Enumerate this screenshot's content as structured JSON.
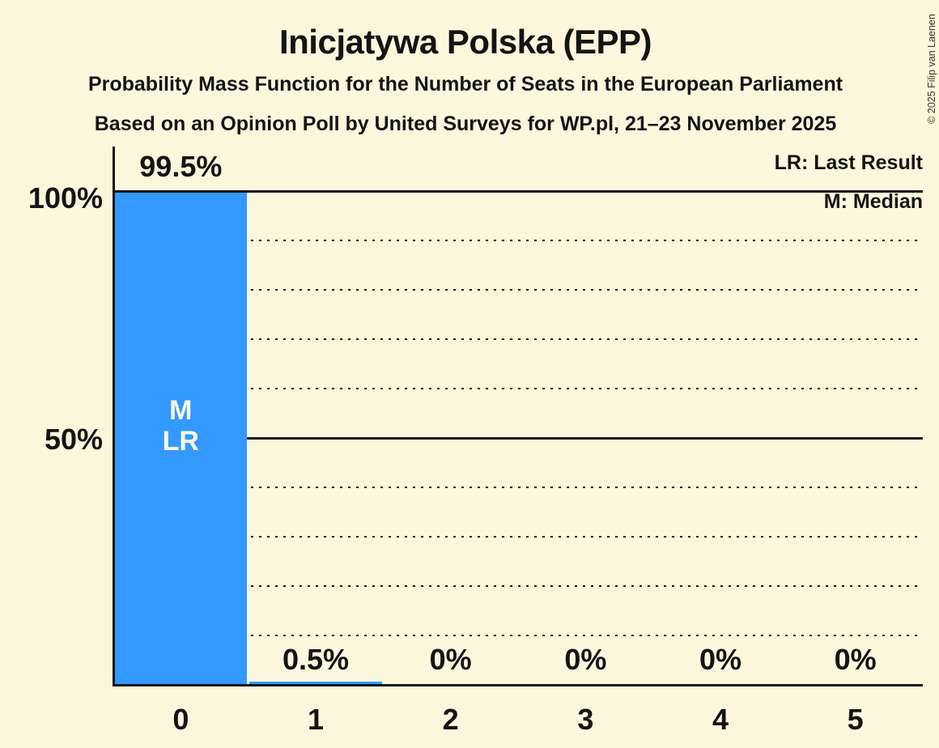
{
  "title": "Inicjatywa Polska (EPP)",
  "subtitle_line1": "Probability Mass Function for the Number of Seats in the European Parliament",
  "subtitle_line2": "Based on an Opinion Poll by United Surveys for WP.pl, 21–23 November 2025",
  "copyright": "© 2025 Filip van Laenen",
  "legend": {
    "last_result": "LR: Last Result",
    "median": "M: Median"
  },
  "colors": {
    "background": "#FBF7DC",
    "bar": "#3399FF",
    "text": "#141414",
    "bar_inner_label": "#FBF7DC"
  },
  "chart_data": {
    "type": "bar",
    "categories": [
      "0",
      "1",
      "2",
      "3",
      "4",
      "5"
    ],
    "values": [
      99.5,
      0.5,
      0,
      0,
      0,
      0
    ],
    "value_labels": [
      "99.5%",
      "0.5%",
      "0%",
      "0%",
      "0%",
      "0%"
    ],
    "ylim": [
      0,
      100
    ],
    "ytick_labels": [
      "100%",
      "50%"
    ],
    "ytick_positions": [
      100,
      50
    ],
    "solid_gridlines_pct": [
      100,
      50
    ],
    "dotted_gridlines_pct": [
      90,
      80,
      70,
      60,
      40,
      30,
      20,
      10
    ],
    "grid": "horizontal",
    "legend_position": "top-right",
    "annotations": [
      {
        "category": "0",
        "lines": [
          "M",
          "LR"
        ]
      }
    ]
  }
}
